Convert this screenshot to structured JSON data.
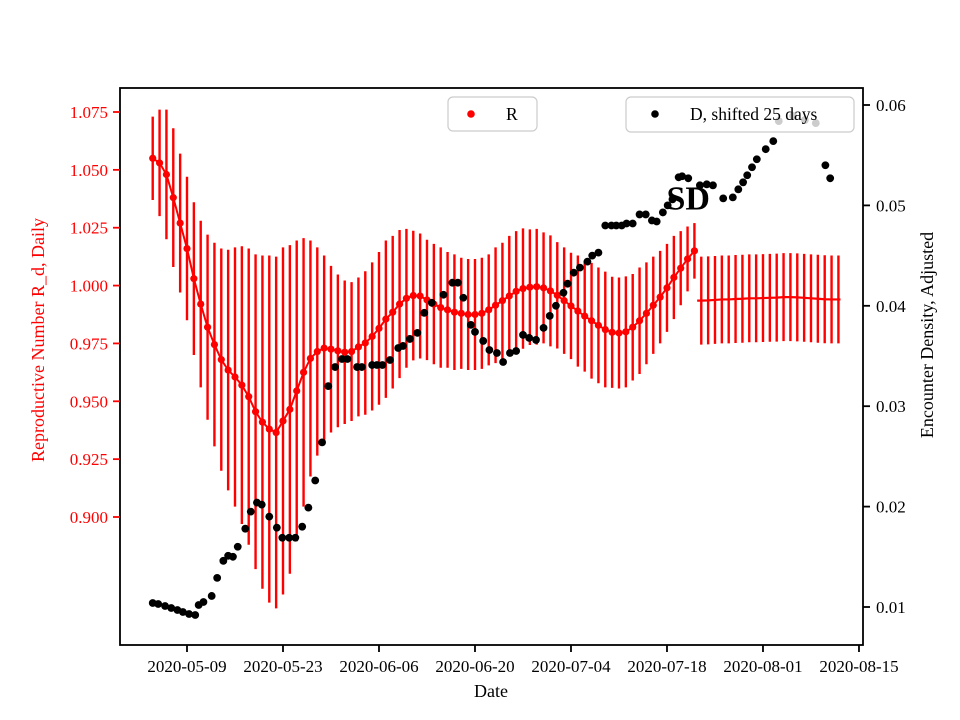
{
  "figure": {
    "background": "#ffffff",
    "kind": "dual-axis errorbar + scatter plot"
  },
  "chart_data": {
    "type": "scatter",
    "title": "",
    "annotation": {
      "text": "SD",
      "day": 73.1,
      "value_right": 0.0508
    },
    "x_axis": {
      "label": "Date",
      "tick_labels": [
        "2020-05-09",
        "2020-05-23",
        "2020-06-06",
        "2020-06-20",
        "2020-07-04",
        "2020-07-18",
        "2020-08-01",
        "2020-08-15"
      ],
      "tick_days": [
        0,
        14,
        28,
        42,
        56,
        70,
        84,
        98
      ],
      "day_zero_date": "2020-05-09"
    },
    "left_axis": {
      "label": "Reproductive Number R_d, Daily",
      "color": "#ff0000",
      "ticks": [
        1.075,
        1.05,
        1.025,
        1.0,
        0.975,
        0.95,
        0.925,
        0.9
      ]
    },
    "right_axis": {
      "label": "Encounter Density, Adjusted",
      "color": "#000000",
      "ticks": [
        0.06,
        0.05,
        0.04,
        0.03,
        0.02,
        0.01
      ]
    },
    "legends": [
      {
        "label": "R",
        "marker_color": "#ff0000"
      },
      {
        "label": "D, shifted 25 days",
        "marker_color": "#000000"
      }
    ],
    "series": [
      {
        "name": "R",
        "type": "errorbar-line",
        "color": "#ff0000",
        "points_day_value_err": [
          [
            -5,
            1.055,
            0.018
          ],
          [
            -4,
            1.053,
            0.023
          ],
          [
            -3,
            1.048,
            0.028
          ],
          [
            -2,
            1.038,
            0.03
          ],
          [
            -1,
            1.027,
            0.03
          ],
          [
            0,
            1.016,
            0.031
          ],
          [
            1,
            1.003,
            0.033
          ],
          [
            2,
            0.992,
            0.036
          ],
          [
            3,
            0.982,
            0.04
          ],
          [
            4,
            0.9745,
            0.044
          ],
          [
            5,
            0.968,
            0.048
          ],
          [
            6,
            0.9635,
            0.052
          ],
          [
            7,
            0.9605,
            0.056
          ],
          [
            8,
            0.957,
            0.06
          ],
          [
            9,
            0.952,
            0.064
          ],
          [
            10,
            0.9455,
            0.068
          ],
          [
            11,
            0.941,
            0.072
          ],
          [
            12,
            0.938,
            0.075
          ],
          [
            13,
            0.9365,
            0.076
          ],
          [
            14,
            0.9415,
            0.075
          ],
          [
            15,
            0.9465,
            0.071
          ],
          [
            16,
            0.9545,
            0.065
          ],
          [
            17,
            0.9625,
            0.058
          ],
          [
            18,
            0.9685,
            0.051
          ],
          [
            19,
            0.9715,
            0.045
          ],
          [
            20,
            0.973,
            0.04
          ],
          [
            21,
            0.9725,
            0.036
          ],
          [
            22,
            0.9718,
            0.033
          ],
          [
            23,
            0.9712,
            0.031
          ],
          [
            24,
            0.9715,
            0.03
          ],
          [
            25,
            0.9735,
            0.03
          ],
          [
            26,
            0.9752,
            0.031
          ],
          [
            27,
            0.978,
            0.032
          ],
          [
            28,
            0.9815,
            0.033
          ],
          [
            29,
            0.9855,
            0.034
          ],
          [
            30,
            0.9885,
            0.033
          ],
          [
            31,
            0.992,
            0.032
          ],
          [
            32,
            0.9945,
            0.03
          ],
          [
            33,
            0.9957,
            0.028
          ],
          [
            34,
            0.9955,
            0.027
          ],
          [
            35,
            0.9938,
            0.026
          ],
          [
            36,
            0.992,
            0.026
          ],
          [
            37,
            0.9905,
            0.026
          ],
          [
            38,
            0.9895,
            0.025
          ],
          [
            39,
            0.9885,
            0.025
          ],
          [
            40,
            0.988,
            0.024
          ],
          [
            41,
            0.9875,
            0.024
          ],
          [
            42,
            0.9875,
            0.024
          ],
          [
            43,
            0.988,
            0.024
          ],
          [
            44,
            0.9895,
            0.024
          ],
          [
            45,
            0.9915,
            0.025
          ],
          [
            46,
            0.9935,
            0.025
          ],
          [
            47,
            0.9955,
            0.026
          ],
          [
            48,
            0.9975,
            0.026
          ],
          [
            49,
            0.9987,
            0.026
          ],
          [
            50,
            0.9993,
            0.025
          ],
          [
            51,
            0.9995,
            0.025
          ],
          [
            52,
            0.999,
            0.024
          ],
          [
            53,
            0.9977,
            0.024
          ],
          [
            54,
            0.9958,
            0.023
          ],
          [
            55,
            0.9935,
            0.023
          ],
          [
            56,
            0.9912,
            0.023
          ],
          [
            57,
            0.989,
            0.024
          ],
          [
            58,
            0.9868,
            0.024
          ],
          [
            59,
            0.9848,
            0.025
          ],
          [
            60,
            0.9828,
            0.025
          ],
          [
            61,
            0.981,
            0.025
          ],
          [
            62,
            0.9798,
            0.024
          ],
          [
            63,
            0.9795,
            0.024
          ],
          [
            64,
            0.98,
            0.024
          ],
          [
            65,
            0.982,
            0.023
          ],
          [
            66,
            0.9848,
            0.023
          ],
          [
            67,
            0.988,
            0.022
          ],
          [
            68,
            0.9915,
            0.021
          ],
          [
            69,
            0.995,
            0.02
          ],
          [
            70,
            0.999,
            0.019
          ],
          [
            71,
            1.0035,
            0.018
          ],
          [
            72,
            1.0075,
            0.016
          ],
          [
            73,
            1.0115,
            0.014
          ],
          [
            74,
            1.015,
            0.012
          ]
        ]
      },
      {
        "name": "R forecast (no markers)",
        "type": "line-errorbar-tail",
        "color": "#ff0000",
        "err": 0.019,
        "line_start_day": 74.4,
        "line_end_day": 95.3,
        "points_day_value": [
          [
            75,
            0.9935
          ],
          [
            76,
            0.9936
          ],
          [
            77,
            0.9938
          ],
          [
            78,
            0.994
          ],
          [
            79,
            0.994
          ],
          [
            80,
            0.9942
          ],
          [
            81,
            0.9943
          ],
          [
            82,
            0.9945
          ],
          [
            83,
            0.9945
          ],
          [
            84,
            0.9946
          ],
          [
            85,
            0.9947
          ],
          [
            86,
            0.9948
          ],
          [
            87,
            0.995
          ],
          [
            88,
            0.995
          ],
          [
            89,
            0.9949
          ],
          [
            90,
            0.9947
          ],
          [
            91,
            0.9945
          ],
          [
            92,
            0.9943
          ],
          [
            93,
            0.9941
          ],
          [
            94,
            0.994
          ],
          [
            95,
            0.994
          ]
        ]
      },
      {
        "name": "D, shifted 25 days",
        "type": "scatter",
        "color": "#000000",
        "axis": "right",
        "points_day_value": [
          [
            -5,
            0.0104
          ],
          [
            -4.2,
            0.0103
          ],
          [
            -3.2,
            0.0101
          ],
          [
            -2.3,
            0.0099
          ],
          [
            -1.4,
            0.0097
          ],
          [
            -0.6,
            0.0095
          ],
          [
            0.3,
            0.0093
          ],
          [
            1.2,
            0.0092
          ],
          [
            1.7,
            0.0102
          ],
          [
            2.4,
            0.0105
          ],
          [
            3.6,
            0.0111
          ],
          [
            4.4,
            0.0129
          ],
          [
            5.3,
            0.0146
          ],
          [
            6,
            0.0151
          ],
          [
            6.7,
            0.015
          ],
          [
            7.4,
            0.016
          ],
          [
            8.5,
            0.0178
          ],
          [
            9.3,
            0.0195
          ],
          [
            10.2,
            0.0204
          ],
          [
            10.9,
            0.0202
          ],
          [
            12,
            0.019
          ],
          [
            13.1,
            0.0179
          ],
          [
            13.9,
            0.0169
          ],
          [
            14.9,
            0.0169
          ],
          [
            15.8,
            0.0169
          ],
          [
            16.8,
            0.018
          ],
          [
            17.7,
            0.0199
          ],
          [
            18.7,
            0.0226
          ],
          [
            19.7,
            0.0264
          ],
          [
            20.6,
            0.032
          ],
          [
            21.6,
            0.0339
          ],
          [
            22.6,
            0.0347
          ],
          [
            23.4,
            0.0347
          ],
          [
            24.8,
            0.0339
          ],
          [
            25.5,
            0.0339
          ],
          [
            27,
            0.0341
          ],
          [
            27.7,
            0.0341
          ],
          [
            28.5,
            0.0341
          ],
          [
            29.6,
            0.0346
          ],
          [
            30.8,
            0.0358
          ],
          [
            31.5,
            0.036
          ],
          [
            32.5,
            0.0367
          ],
          [
            33.6,
            0.0373
          ],
          [
            34.6,
            0.0393
          ],
          [
            35.7,
            0.0403
          ],
          [
            37.4,
            0.0411
          ],
          [
            38.7,
            0.0423
          ],
          [
            39.5,
            0.0423
          ],
          [
            40.3,
            0.0408
          ],
          [
            41.4,
            0.0381
          ],
          [
            42,
            0.0374
          ],
          [
            43.2,
            0.0365
          ],
          [
            44.1,
            0.0356
          ],
          [
            45.2,
            0.0353
          ],
          [
            46.1,
            0.0344
          ],
          [
            47.1,
            0.0353
          ],
          [
            48,
            0.0355
          ],
          [
            49,
            0.0371
          ],
          [
            49.9,
            0.0368
          ],
          [
            50.9,
            0.0366
          ],
          [
            52,
            0.0378
          ],
          [
            52.9,
            0.039
          ],
          [
            53.8,
            0.04
          ],
          [
            54.9,
            0.0413
          ],
          [
            55.5,
            0.0422
          ],
          [
            56.4,
            0.0433
          ],
          [
            57.3,
            0.0438
          ],
          [
            58.4,
            0.0444
          ],
          [
            59.1,
            0.045
          ],
          [
            60,
            0.0453
          ],
          [
            61,
            0.048
          ],
          [
            61.9,
            0.048
          ],
          [
            62.6,
            0.048
          ],
          [
            63.4,
            0.048
          ],
          [
            64.1,
            0.0482
          ],
          [
            65,
            0.0482
          ],
          [
            66,
            0.0491
          ],
          [
            66.9,
            0.0491
          ],
          [
            67.8,
            0.0485
          ],
          [
            68.5,
            0.0484
          ],
          [
            69.4,
            0.0493
          ],
          [
            70.1,
            0.05
          ],
          [
            70.8,
            0.0506
          ],
          [
            71.7,
            0.0528
          ],
          [
            72.2,
            0.0529
          ],
          [
            73.1,
            0.0527
          ],
          [
            74.8,
            0.052
          ],
          [
            75.8,
            0.0521
          ],
          [
            76.7,
            0.052
          ],
          [
            78.2,
            0.0507
          ],
          [
            79.6,
            0.0508
          ],
          [
            80.4,
            0.0516
          ],
          [
            81.1,
            0.0523
          ],
          [
            81.7,
            0.053
          ],
          [
            82.4,
            0.0538
          ],
          [
            83.1,
            0.0546
          ],
          [
            84.4,
            0.0556
          ],
          [
            85.5,
            0.0564
          ],
          [
            86.3,
            0.0584
          ],
          [
            88.4,
            0.0589
          ],
          [
            90.1,
            0.0585
          ],
          [
            91.7,
            0.0582
          ],
          [
            93.1,
            0.054
          ],
          [
            93.8,
            0.0527
          ]
        ]
      }
    ]
  }
}
